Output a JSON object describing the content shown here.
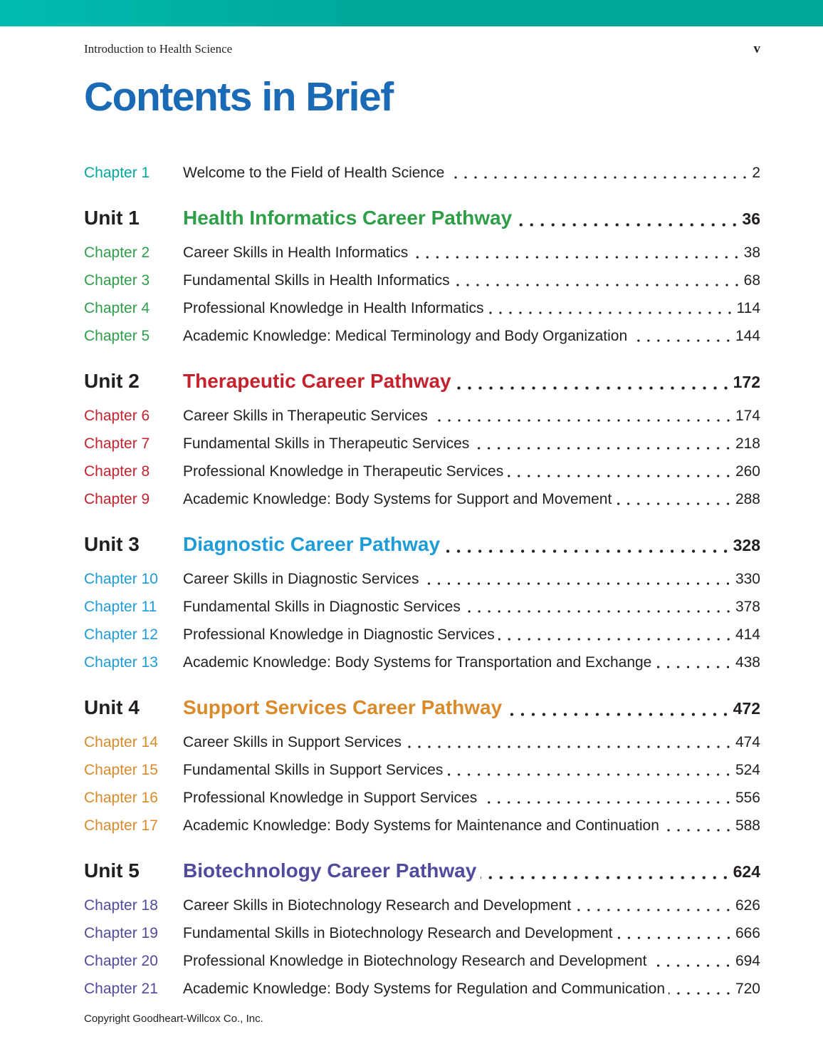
{
  "header": {
    "book_title": "Introduction to Health Science",
    "folio": "v"
  },
  "page_title": "Contents in Brief",
  "footer": {
    "copyright": "Copyright Goodheart-Willcox Co., Inc."
  },
  "colors": {
    "bar_gradient_start": "#00bcb0",
    "bar_gradient_end": "#00a79b",
    "title_blue": "#1b6ab5",
    "text_black": "#231f20",
    "chapter1_teal": "#00a89c",
    "unit1_green": "#2e9e48",
    "unit2_red": "#c4232e",
    "unit3_blue": "#1e9cd8",
    "unit4_orange": "#d98a2b",
    "unit5_purple": "#514b9e"
  },
  "toc": {
    "front_chapters": [
      {
        "label": "Chapter 1",
        "title": "Welcome to the Field of Health Science",
        "page": "2",
        "color": "#00a89c"
      }
    ],
    "units": [
      {
        "label": "Unit 1",
        "title": "Health Informatics Career Pathway",
        "page": "36",
        "color": "#2e9e48",
        "chapters": [
          {
            "label": "Chapter 2",
            "title": "Career Skills in Health Informatics",
            "page": "38"
          },
          {
            "label": "Chapter 3",
            "title": "Fundamental Skills in Health Informatics",
            "page": "68"
          },
          {
            "label": "Chapter 4",
            "title": "Professional Knowledge in Health Informatics",
            "page": "114"
          },
          {
            "label": "Chapter 5",
            "title": "Academic Knowledge: Medical Terminology and Body Organization",
            "page": "144"
          }
        ]
      },
      {
        "label": "Unit 2",
        "title": "Therapeutic Career Pathway",
        "page": "172",
        "color": "#c4232e",
        "chapters": [
          {
            "label": "Chapter 6",
            "title": "Career Skills in Therapeutic Services",
            "page": "174"
          },
          {
            "label": "Chapter 7",
            "title": "Fundamental Skills in Therapeutic Services",
            "page": "218"
          },
          {
            "label": "Chapter 8",
            "title": "Professional Knowledge in Therapeutic Services",
            "page": "260"
          },
          {
            "label": "Chapter 9",
            "title": "Academic Knowledge: Body Systems for Support and Movement",
            "page": "288"
          }
        ]
      },
      {
        "label": "Unit 3",
        "title": "Diagnostic Career Pathway",
        "page": "328",
        "color": "#1e9cd8",
        "chapters": [
          {
            "label": "Chapter 10",
            "title": "Career Skills in Diagnostic Services",
            "page": "330"
          },
          {
            "label": "Chapter 11",
            "title": "Fundamental Skills in Diagnostic Services",
            "page": "378"
          },
          {
            "label": "Chapter 12",
            "title": "Professional Knowledge in Diagnostic Services",
            "page": "414"
          },
          {
            "label": "Chapter 13",
            "title": "Academic Knowledge: Body Systems for Transportation and Exchange",
            "page": "438"
          }
        ]
      },
      {
        "label": "Unit 4",
        "title": "Support Services Career Pathway",
        "page": "472",
        "color": "#d98a2b",
        "chapters": [
          {
            "label": "Chapter 14",
            "title": "Career Skills in Support Services",
            "page": "474"
          },
          {
            "label": "Chapter 15",
            "title": "Fundamental Skills in Support Services",
            "page": "524"
          },
          {
            "label": "Chapter 16",
            "title": "Professional Knowledge in Support Services",
            "page": "556"
          },
          {
            "label": "Chapter 17",
            "title": "Academic Knowledge: Body Systems for Maintenance and Continuation",
            "page": "588"
          }
        ]
      },
      {
        "label": "Unit 5",
        "title": "Biotechnology Career Pathway",
        "page": "624",
        "color": "#514b9e",
        "chapters": [
          {
            "label": "Chapter 18",
            "title": "Career Skills in Biotechnology Research and Development",
            "page": "626"
          },
          {
            "label": "Chapter 19",
            "title": "Fundamental Skills in Biotechnology Research and Development",
            "page": "666"
          },
          {
            "label": "Chapter 20",
            "title": "Professional Knowledge in Biotechnology Research and Development",
            "page": "694"
          },
          {
            "label": "Chapter 21",
            "title": "Academic Knowledge: Body Systems for Regulation and Communication",
            "page": "720"
          }
        ]
      }
    ]
  }
}
